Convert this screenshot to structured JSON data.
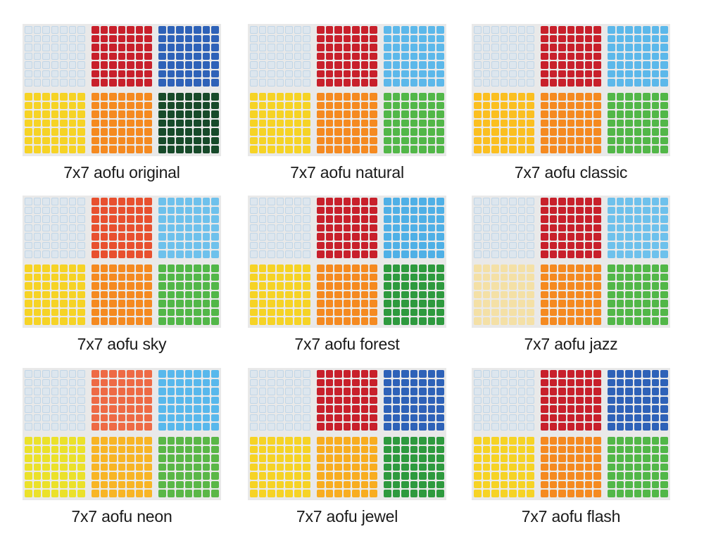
{
  "stickers": [
    {
      "caption": "7x7 aofu original",
      "colors": [
        "#dde6ee",
        "#c8202b",
        "#2e62b8",
        "#f6d325",
        "#f58a20",
        "#174a2a"
      ]
    },
    {
      "caption": "7x7 aofu natural",
      "colors": [
        "#dde6ee",
        "#c8202b",
        "#5cb8ea",
        "#f6d325",
        "#f58a20",
        "#52b748"
      ]
    },
    {
      "caption": "7x7 aofu classic",
      "colors": [
        "#dde6ee",
        "#c8202b",
        "#5cb8ea",
        "#fbbf20",
        "#f58a20",
        "#52b748"
      ]
    },
    {
      "caption": "7x7 aofu sky",
      "colors": [
        "#dde6ee",
        "#e8502f",
        "#6ec1ec",
        "#f6d325",
        "#f58a20",
        "#52b748"
      ]
    },
    {
      "caption": "7x7 aofu forest",
      "colors": [
        "#dde6ee",
        "#c8202b",
        "#4fb0e6",
        "#f6d325",
        "#f58a20",
        "#2e9a3e"
      ]
    },
    {
      "caption": "7x7 aofu jazz",
      "colors": [
        "#dde6ee",
        "#c8202b",
        "#6ec1ec",
        "#f4e0a6",
        "#f58a20",
        "#52b748"
      ]
    },
    {
      "caption": "7x7 aofu neon",
      "colors": [
        "#dde6ee",
        "#ee6a45",
        "#58b8ec",
        "#ebe12a",
        "#f8b525",
        "#5ab747"
      ]
    },
    {
      "caption": "7x7 aofu jewel",
      "colors": [
        "#dde6ee",
        "#c8202b",
        "#2e62b8",
        "#f6d325",
        "#f8ad20",
        "#2e9a3e"
      ]
    },
    {
      "caption": "7x7 aofu flash",
      "colors": [
        "#dde6ee",
        "#c8202b",
        "#2e62b8",
        "#f6d325",
        "#f58a20",
        "#52b748"
      ]
    }
  ]
}
